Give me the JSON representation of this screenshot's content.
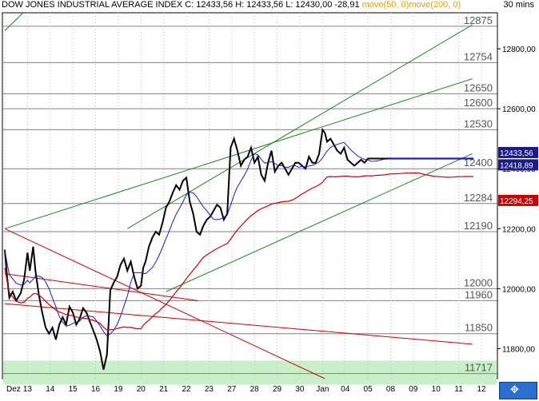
{
  "header": {
    "index_name": "DOW JONES INDUSTRIAL AVERAGE INDEX",
    "quote": "C: 12433,56 H: 12433,56 L: 12430,00 -28,91",
    "ma50_label": "move(50, 0)",
    "ma200_label": "move(200, 0)",
    "interval": "30 mins"
  },
  "colors": {
    "price": "#000000",
    "ma50": "#1a1ad0",
    "ma200": "#d00000",
    "channel": "#1a8a1a",
    "trend_red": "#cc0000",
    "support_zone": "#c8f0c8",
    "price_badge": "#1a1a8a",
    "ma200_badge": "#cc0000",
    "level_line": "#808080"
  },
  "chart_data": {
    "type": "line",
    "x": [
      "Dez",
      "13",
      "14",
      "15",
      "16",
      "19",
      "20",
      "21",
      "22",
      "23",
      "27",
      "28",
      "29",
      "30",
      "Jan",
      "04",
      "05",
      "08",
      "09",
      "10",
      "11",
      "12"
    ],
    "ylim": [
      11700,
      12920
    ],
    "y_ticks": [
      "12800,00",
      "12600,00",
      "12400,00",
      "12200,00",
      "12000,00",
      "11800,00"
    ],
    "y_tick_values": [
      12800,
      12600,
      12400,
      12200,
      12000,
      11800
    ],
    "level_labels": [
      "12875",
      "12754",
      "12650",
      "12600",
      "12530",
      "12400",
      "12284",
      "12190",
      "12000",
      "11960",
      "11850",
      "11717"
    ],
    "level_values": [
      12875,
      12754,
      12650,
      12600,
      12530,
      12400,
      12284,
      12190,
      12000,
      11960,
      11850,
      11717
    ],
    "support_zone": [
      11680,
      11760
    ],
    "last_price_label": "12433,56",
    "ma50_badge_label": "12418,89",
    "ma200_badge_label": "12294,25",
    "ma50_last": 12418.89,
    "ma200_last": 12294.25,
    "series": [
      {
        "name": "DOW JONES INDUSTRIAL AVERAGE INDEX",
        "x": [
          0,
          0.1,
          0.2,
          0.35,
          0.5,
          0.7,
          0.85,
          1,
          1.1,
          1.25,
          1.35,
          1.5,
          1.65,
          1.8,
          1.95,
          2.1,
          2.25,
          2.4,
          2.55,
          2.7,
          2.85,
          3,
          3.15,
          3.3,
          3.45,
          3.6,
          3.75,
          3.9,
          4.05,
          4.2,
          4.35,
          4.5,
          4.65,
          4.8,
          4.95,
          5.1,
          5.25,
          5.4,
          5.55,
          5.7,
          5.85,
          6,
          6.05,
          6.1,
          6.2,
          6.35,
          6.5,
          6.65,
          6.8,
          6.95,
          7.1,
          7.25,
          7.4,
          7.55,
          7.7,
          7.85,
          8,
          8.15,
          8.3,
          8.45,
          8.6,
          8.75,
          8.9,
          9.05,
          9.2,
          9.35,
          9.5,
          9.65,
          9.8,
          9.95,
          10.1,
          10.25,
          10.4,
          10.55,
          10.7,
          10.85,
          11,
          11.15,
          11.3,
          11.45,
          11.6,
          11.75,
          11.9,
          12.05,
          12.2,
          12.35,
          12.5,
          12.65,
          12.8,
          12.95,
          13.1,
          13.25,
          13.4,
          13.55,
          13.7,
          13.85,
          14,
          14.1,
          14.2,
          14.35,
          14.5,
          14.65,
          14.8,
          14.95,
          15.1,
          15.25,
          15.4,
          15.55,
          15.7,
          15.85,
          16,
          16.15,
          16.3,
          16.45,
          16.6,
          16.75,
          16.9,
          17.05,
          17.2,
          17.35,
          17.5,
          17.65,
          17.8,
          17.95,
          18.1,
          18.25,
          18.4,
          18.55,
          18.7,
          18.85,
          19,
          19.15,
          19.3,
          19.45,
          19.6,
          19.75,
          19.9,
          20.05,
          20.2,
          20.35,
          20.5,
          20.65
        ],
        "values": [
          12130,
          12040,
          11970,
          11990,
          11960,
          11985,
          12030,
          12120,
          12060,
          12140,
          12060,
          11980,
          11920,
          11870,
          11850,
          11870,
          11830,
          11880,
          11905,
          11880,
          11940,
          11920,
          11880,
          11900,
          11935,
          11920,
          11890,
          11860,
          11830,
          11790,
          11730,
          11780,
          11995,
          12020,
          12040,
          12080,
          12100,
          12060,
          12090,
          12040,
          12000,
          12010,
          12040,
          12070,
          12090,
          12140,
          12170,
          12190,
          12180,
          12220,
          12270,
          12290,
          12320,
          12345,
          12330,
          12360,
          12370,
          12290,
          12250,
          12190,
          12180,
          12210,
          12230,
          12240,
          12260,
          12280,
          12270,
          12230,
          12250,
          12470,
          12500,
          12460,
          12410,
          12430,
          12440,
          12470,
          12420,
          12440,
          12380,
          12360,
          12420,
          12460,
          12390,
          12410,
          12420,
          12400,
          12380,
          12400,
          12420,
          12420,
          12410,
          12400,
          12440,
          12420,
          12420,
          12450,
          12530,
          12520,
          12490,
          12500,
          12480,
          12460,
          12450,
          12470,
          12430,
          12420,
          12410,
          12420,
          12430,
          12420,
          12434,
          12434,
          12434,
          12434,
          12434,
          12434,
          12434,
          12434,
          12434,
          12434,
          12434,
          12434,
          12434,
          12434,
          12434,
          12434,
          12434,
          12434,
          12434,
          12434,
          12434,
          12434,
          12434,
          12434,
          12434,
          12434,
          12434,
          12434,
          12434,
          12434,
          12434,
          12434
        ]
      }
    ]
  }
}
